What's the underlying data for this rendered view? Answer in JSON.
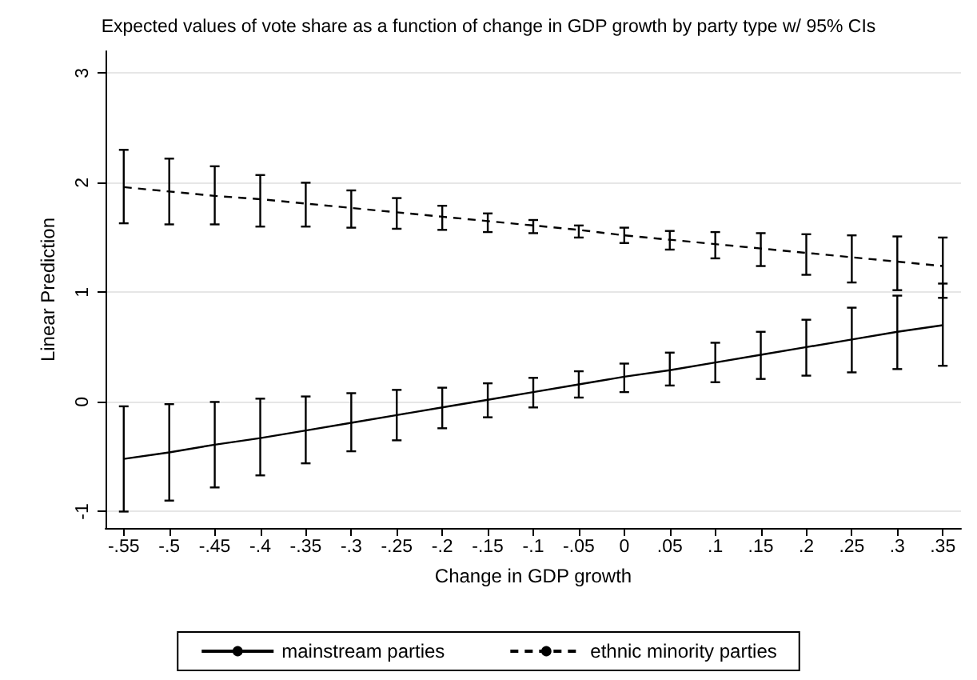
{
  "chart_data": {
    "type": "line",
    "title": "Expected values of vote share as a function of change in GDP growth by party type w/ 95% CIs",
    "xlabel": "Change in GDP growth",
    "ylabel": "Linear Prediction",
    "x": [
      -0.55,
      -0.5,
      -0.45,
      -0.4,
      -0.35,
      -0.3,
      -0.25,
      -0.2,
      -0.15,
      -0.1,
      -0.05,
      0,
      0.05,
      0.1,
      0.15,
      0.2,
      0.25,
      0.3,
      0.35
    ],
    "series": [
      {
        "name": "mainstream parties",
        "color": "#000000",
        "line_style": "solid",
        "values": [
          -0.52,
          -0.46,
          -0.39,
          -0.33,
          -0.26,
          -0.19,
          -0.12,
          -0.05,
          0.02,
          0.09,
          0.16,
          0.23,
          0.29,
          0.36,
          0.43,
          0.5,
          0.57,
          0.64,
          0.7
        ],
        "errors": [
          [
            -1.0,
            -0.04
          ],
          [
            -0.9,
            -0.02
          ],
          [
            -0.78,
            0.0
          ],
          [
            -0.67,
            0.03
          ],
          [
            -0.56,
            0.05
          ],
          [
            -0.45,
            0.08
          ],
          [
            -0.35,
            0.11
          ],
          [
            -0.24,
            0.13
          ],
          [
            -0.14,
            0.17
          ],
          [
            -0.05,
            0.22
          ],
          [
            0.04,
            0.28
          ],
          [
            0.09,
            0.35
          ],
          [
            0.15,
            0.45
          ],
          [
            0.18,
            0.54
          ],
          [
            0.21,
            0.64
          ],
          [
            0.24,
            0.75
          ],
          [
            0.27,
            0.86
          ],
          [
            0.3,
            0.97
          ],
          [
            0.33,
            1.08
          ]
        ]
      },
      {
        "name": "ethnic minority parties",
        "color": "#000000",
        "line_style": "dashed",
        "values": [
          1.96,
          1.92,
          1.88,
          1.85,
          1.81,
          1.77,
          1.73,
          1.69,
          1.65,
          1.61,
          1.57,
          1.52,
          1.48,
          1.44,
          1.4,
          1.36,
          1.32,
          1.28,
          1.24
        ],
        "errors": [
          [
            1.63,
            2.3
          ],
          [
            1.62,
            2.22
          ],
          [
            1.62,
            2.15
          ],
          [
            1.6,
            2.07
          ],
          [
            1.6,
            2.0
          ],
          [
            1.59,
            1.93
          ],
          [
            1.58,
            1.86
          ],
          [
            1.57,
            1.79
          ],
          [
            1.55,
            1.72
          ],
          [
            1.54,
            1.66
          ],
          [
            1.5,
            1.61
          ],
          [
            1.45,
            1.59
          ],
          [
            1.39,
            1.56
          ],
          [
            1.31,
            1.55
          ],
          [
            1.24,
            1.54
          ],
          [
            1.16,
            1.53
          ],
          [
            1.09,
            1.52
          ],
          [
            1.02,
            1.51
          ],
          [
            0.95,
            1.5
          ]
        ]
      }
    ],
    "xlim": [
      -0.57,
      0.37
    ],
    "xticks": [
      {
        "value": -0.55,
        "label": "-.55"
      },
      {
        "value": -0.5,
        "label": "-.5"
      },
      {
        "value": -0.45,
        "label": "-.45"
      },
      {
        "value": -0.4,
        "label": "-.4"
      },
      {
        "value": -0.35,
        "label": "-.35"
      },
      {
        "value": -0.3,
        "label": "-.3"
      },
      {
        "value": -0.25,
        "label": "-.25"
      },
      {
        "value": -0.2,
        "label": "-.2"
      },
      {
        "value": -0.15,
        "label": "-.15"
      },
      {
        "value": -0.1,
        "label": "-.1"
      },
      {
        "value": -0.05,
        "label": "-.05"
      },
      0,
      {
        "value": 0.05,
        "label": ".05"
      },
      {
        "value": 0.1,
        "label": ".1"
      },
      {
        "value": 0.15,
        "label": ".15"
      },
      {
        "value": 0.2,
        "label": ".2"
      },
      {
        "value": 0.25,
        "label": ".25"
      },
      {
        "value": 0.3,
        "label": ".3"
      },
      {
        "value": 0.35,
        "label": ".35"
      }
    ],
    "ylim": [
      -1.15,
      3.2
    ],
    "yticks": [
      -1,
      0,
      1,
      2,
      3
    ],
    "grid": "y",
    "legend": "bottom",
    "marker": "none"
  }
}
